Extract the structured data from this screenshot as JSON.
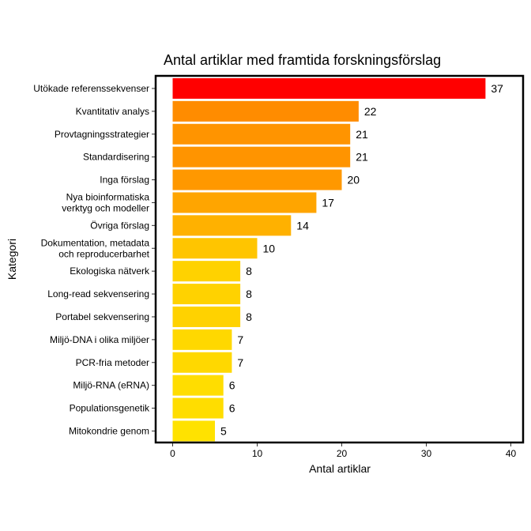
{
  "chart_data": {
    "type": "bar",
    "orientation": "horizontal",
    "title": "Antal artiklar med framtida forskningsförslag",
    "xlabel": "Antal artiklar",
    "ylabel": "Kategori",
    "xlim": [
      0,
      41
    ],
    "xticks": [
      0,
      10,
      20,
      30,
      40
    ],
    "grid": false,
    "legend": "none",
    "categories": [
      [
        "Utökade referenssekvenser"
      ],
      [
        "Kvantitativ analys"
      ],
      [
        "Provtagningsstrategier"
      ],
      [
        "Standardisering"
      ],
      [
        "Inga förslag"
      ],
      [
        "Nya bioinformatiska",
        "verktyg och modeller"
      ],
      [
        "Övriga förslag"
      ],
      [
        "Dokumentation, metadata",
        "och reproducerbarhet"
      ],
      [
        "Ekologiska nätverk"
      ],
      [
        "Long-read sekvensering"
      ],
      [
        "Portabel sekvensering"
      ],
      [
        "Miljö-DNA i olika miljöer"
      ],
      [
        "PCR-fria metoder"
      ],
      [
        "Miljö-RNA (eRNA)"
      ],
      [
        "Populationsgenetik"
      ],
      [
        "Mitokondrie genom"
      ]
    ],
    "values": [
      37,
      22,
      21,
      21,
      20,
      17,
      14,
      10,
      8,
      8,
      8,
      7,
      7,
      6,
      6,
      5
    ],
    "colors": [
      "#ff0000",
      "#ff8c00",
      "#ff9400",
      "#ff9400",
      "#ff9800",
      "#ffa500",
      "#ffb100",
      "#ffc500",
      "#ffd200",
      "#ffd200",
      "#ffd200",
      "#ffd800",
      "#ffd800",
      "#ffdd00",
      "#ffdd00",
      "#ffe200"
    ]
  }
}
